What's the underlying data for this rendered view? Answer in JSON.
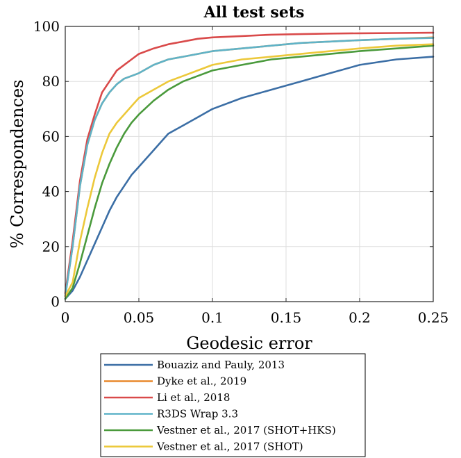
{
  "chart_data": {
    "type": "line",
    "title": "All test sets",
    "xlabel": "Geodesic error",
    "ylabel": "% Correspondences",
    "xlim": [
      0,
      0.25
    ],
    "ylim": [
      0,
      100
    ],
    "xticks": [
      0,
      0.05,
      0.1,
      0.15,
      0.2,
      0.25
    ],
    "xtick_labels": [
      "0",
      "0.05",
      "0.1",
      "0.15",
      "0.2",
      "0.25"
    ],
    "yticks": [
      0,
      20,
      40,
      60,
      80,
      100
    ],
    "ytick_labels": [
      "0",
      "20",
      "40",
      "60",
      "80",
      "100"
    ],
    "grid": true,
    "legend_position": "below",
    "x": [
      0,
      0.005,
      0.01,
      0.015,
      0.02,
      0.025,
      0.03,
      0.035,
      0.04,
      0.045,
      0.05,
      0.06,
      0.07,
      0.08,
      0.09,
      0.1,
      0.12,
      0.14,
      0.16,
      0.18,
      0.2,
      0.225,
      0.25
    ],
    "series": [
      {
        "name": "Bouaziz and Pauly, 2013",
        "color": "#3b6ea5",
        "values": [
          1,
          4,
          9,
          15,
          21,
          27,
          33,
          38,
          42,
          46,
          49,
          55,
          61,
          64,
          67,
          70,
          74,
          77,
          80,
          83,
          86,
          88,
          89
        ]
      },
      {
        "name": "Dyke et al., 2019",
        "color": "#e8892b",
        "values": [
          2,
          20,
          42,
          57,
          66,
          72,
          76,
          79,
          81,
          82,
          83,
          86,
          88,
          89,
          90,
          91,
          92,
          93,
          94,
          94.5,
          95,
          95.5,
          96
        ]
      },
      {
        "name": "Li et al., 2018",
        "color": "#d94a4a",
        "values": [
          3,
          22,
          44,
          59,
          68,
          76,
          80,
          84,
          86,
          88,
          90,
          92,
          93.5,
          94.5,
          95.5,
          96,
          96.5,
          97,
          97.2,
          97.4,
          97.5,
          97.6,
          97.7
        ]
      },
      {
        "name": "R3DS Wrap 3.3",
        "color": "#5fb3c8",
        "values": [
          2,
          20,
          42,
          57,
          66,
          72,
          76,
          79,
          81,
          82,
          83,
          86,
          88,
          89,
          90,
          91,
          92,
          93,
          94,
          94.5,
          95,
          95.5,
          95.8
        ]
      },
      {
        "name": "Vestner et al., 2017 (SHOT+HKS)",
        "color": "#4a9a3c",
        "values": [
          1,
          5,
          14,
          24,
          34,
          43,
          50,
          56,
          61,
          65,
          68,
          73,
          77,
          80,
          82,
          84,
          86,
          88,
          89,
          90,
          91,
          92,
          93
        ]
      },
      {
        "name": "Vestner et al., 2017 (SHOT)",
        "color": "#ecc83a",
        "values": [
          2,
          7,
          22,
          34,
          45,
          54,
          61,
          65,
          68,
          71,
          74,
          77,
          80,
          82,
          84,
          86,
          88,
          89,
          90,
          91,
          92,
          93,
          93.5
        ]
      }
    ]
  }
}
